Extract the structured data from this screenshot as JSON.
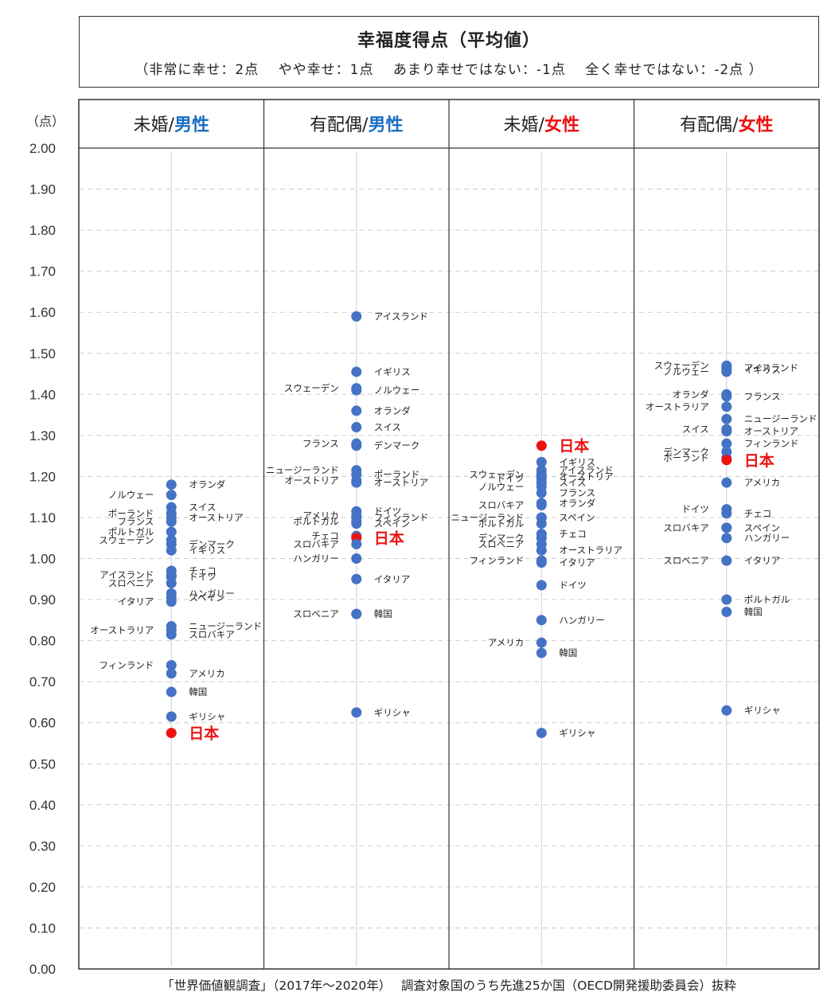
{
  "title": "幸福度得点（平均値）",
  "subtitle": "（非常に幸せ：2点　 やや幸せ：1点　 あまり幸せではない：-1点　 全く幸せではない：-2点 ）",
  "source": "「世界価値観調査」（2017年～2020年）　 調査対象国のうち先進25か国（OECD開発援助委員会）抜粋",
  "colors": {
    "point": "#4472c4",
    "japan": "#ee1111",
    "male": "#1a6fc2",
    "female": "#ee1111",
    "grid": "#cccccc"
  },
  "chart_data": {
    "type": "scatter",
    "ylabel": "（点）",
    "ylim": [
      0,
      2
    ],
    "yticks": [
      "0.00",
      "0.10",
      "0.20",
      "0.30",
      "0.40",
      "0.50",
      "0.60",
      "0.70",
      "0.80",
      "0.90",
      "1.00",
      "1.10",
      "1.20",
      "1.30",
      "1.40",
      "1.50",
      "1.60",
      "1.70",
      "1.80",
      "1.90",
      "2.00"
    ],
    "grid": true,
    "panels": [
      {
        "header_prefix": "未婚/",
        "header_gender": "男性",
        "gender": "male",
        "points": [
          {
            "label": "オランダ",
            "value": 1.18,
            "side": "right"
          },
          {
            "label": "ノルウェー",
            "value": 1.155,
            "side": "left"
          },
          {
            "label": "スイス",
            "value": 1.125,
            "side": "right"
          },
          {
            "label": "ポーランド",
            "value": 1.11,
            "side": "left"
          },
          {
            "label": "オーストリア",
            "value": 1.1,
            "side": "right"
          },
          {
            "label": "フランス",
            "value": 1.09,
            "side": "left"
          },
          {
            "label": "ポルトガル",
            "value": 1.065,
            "side": "left"
          },
          {
            "label": "スウェーデン",
            "value": 1.045,
            "side": "left"
          },
          {
            "label": "デンマーク",
            "value": 1.035,
            "side": "right"
          },
          {
            "label": "イギリス",
            "value": 1.02,
            "side": "right"
          },
          {
            "label": "チェコ",
            "value": 0.97,
            "side": "right"
          },
          {
            "label": "アイスランド",
            "value": 0.96,
            "side": "left"
          },
          {
            "label": "ドイツ",
            "value": 0.955,
            "side": "right"
          },
          {
            "label": "スロベニア",
            "value": 0.94,
            "side": "left"
          },
          {
            "label": "ハンガリー",
            "value": 0.915,
            "side": "right"
          },
          {
            "label": "スペイン",
            "value": 0.905,
            "side": "right"
          },
          {
            "label": "イタリア",
            "value": 0.895,
            "side": "left"
          },
          {
            "label": "ニュージーランド",
            "value": 0.835,
            "side": "right"
          },
          {
            "label": "オーストラリア",
            "value": 0.825,
            "side": "left"
          },
          {
            "label": "スロバキア",
            "value": 0.815,
            "side": "right"
          },
          {
            "label": "フィンランド",
            "value": 0.74,
            "side": "left"
          },
          {
            "label": "アメリカ",
            "value": 0.72,
            "side": "right"
          },
          {
            "label": "韓国",
            "value": 0.675,
            "side": "right"
          },
          {
            "label": "ギリシャ",
            "value": 0.615,
            "side": "right"
          },
          {
            "label": "日本",
            "value": 0.575,
            "side": "right",
            "highlight": true
          }
        ]
      },
      {
        "header_prefix": "有配偶/",
        "header_gender": "男性",
        "gender": "male",
        "points": [
          {
            "label": "アイスランド",
            "value": 1.59,
            "side": "right"
          },
          {
            "label": "イギリス",
            "value": 1.455,
            "side": "right"
          },
          {
            "label": "スウェーデン",
            "value": 1.415,
            "side": "left"
          },
          {
            "label": "ノルウェー",
            "value": 1.41,
            "side": "right"
          },
          {
            "label": "オランダ",
            "value": 1.36,
            "side": "right"
          },
          {
            "label": "スイス",
            "value": 1.32,
            "side": "right"
          },
          {
            "label": "フランス",
            "value": 1.28,
            "side": "left"
          },
          {
            "label": "デンマーク",
            "value": 1.275,
            "side": "right"
          },
          {
            "label": "ニュージーランド",
            "value": 1.215,
            "side": "left"
          },
          {
            "label": "ポーランド",
            "value": 1.205,
            "side": "right"
          },
          {
            "label": "オーストリア",
            "value": 1.19,
            "side": "left"
          },
          {
            "label": "オーストリア",
            "value": 1.185,
            "side": "right"
          },
          {
            "label": "ドイツ",
            "value": 1.115,
            "side": "right"
          },
          {
            "label": "アメリカ",
            "value": 1.105,
            "side": "left"
          },
          {
            "label": "フィンランド",
            "value": 1.1,
            "side": "right"
          },
          {
            "label": "ポルトガル",
            "value": 1.09,
            "side": "left"
          },
          {
            "label": "スペイン",
            "value": 1.085,
            "side": "right"
          },
          {
            "label": "チェコ",
            "value": 1.055,
            "side": "left"
          },
          {
            "label": "日本",
            "value": 1.05,
            "side": "right",
            "highlight": true
          },
          {
            "label": "スロバキア",
            "value": 1.035,
            "side": "left"
          },
          {
            "label": "ハンガリー",
            "value": 1.0,
            "side": "left"
          },
          {
            "label": "イタリア",
            "value": 0.95,
            "side": "right"
          },
          {
            "label": "スロベニア",
            "value": 0.865,
            "side": "left"
          },
          {
            "label": "韓国",
            "value": 0.865,
            "side": "right"
          },
          {
            "label": "ギリシャ",
            "value": 0.625,
            "side": "right"
          }
        ]
      },
      {
        "header_prefix": "未婚/",
        "header_gender": "女性",
        "gender": "female",
        "points": [
          {
            "label": "日本",
            "value": 1.275,
            "side": "right",
            "highlight": true
          },
          {
            "label": "イギリス",
            "value": 1.235,
            "side": "right"
          },
          {
            "label": "アイスランド",
            "value": 1.215,
            "side": "right"
          },
          {
            "label": "スウェーデン",
            "value": 1.205,
            "side": "left"
          },
          {
            "label": "オーストリア",
            "value": 1.2,
            "side": "right"
          },
          {
            "label": "ドイツ",
            "value": 1.195,
            "side": "left"
          },
          {
            "label": "スイス",
            "value": 1.185,
            "side": "right"
          },
          {
            "label": "ノルウェー",
            "value": 1.175,
            "side": "left"
          },
          {
            "label": "フランス",
            "value": 1.16,
            "side": "right"
          },
          {
            "label": "スロバキア",
            "value": 1.13,
            "side": "left"
          },
          {
            "label": "オランダ",
            "value": 1.135,
            "side": "right"
          },
          {
            "label": "ニュージーランド",
            "value": 1.1,
            "side": "left"
          },
          {
            "label": "スペイン",
            "value": 1.1,
            "side": "right"
          },
          {
            "label": "ポルトガル",
            "value": 1.085,
            "side": "left"
          },
          {
            "label": "チェコ",
            "value": 1.06,
            "side": "right"
          },
          {
            "label": "デンマーク",
            "value": 1.05,
            "side": "left"
          },
          {
            "label": "スロベニア",
            "value": 1.035,
            "side": "left"
          },
          {
            "label": "オーストラリア",
            "value": 1.02,
            "side": "right"
          },
          {
            "label": "フィンランド",
            "value": 0.995,
            "side": "left"
          },
          {
            "label": "イタリア",
            "value": 0.99,
            "side": "right"
          },
          {
            "label": "ドイツ",
            "value": 0.935,
            "side": "right"
          },
          {
            "label": "ハンガリー",
            "value": 0.85,
            "side": "right"
          },
          {
            "label": "アメリカ",
            "value": 0.795,
            "side": "left"
          },
          {
            "label": "韓国",
            "value": 0.77,
            "side": "right"
          },
          {
            "label": "ギリシャ",
            "value": 0.575,
            "side": "right"
          }
        ]
      },
      {
        "header_prefix": "有配偶/",
        "header_gender": "女性",
        "gender": "female",
        "points": [
          {
            "label": "スウェーデン",
            "value": 1.47,
            "side": "left"
          },
          {
            "label": "アイスランド",
            "value": 1.465,
            "side": "right"
          },
          {
            "label": "ノルウェー",
            "value": 1.455,
            "side": "left"
          },
          {
            "label": "イギリス",
            "value": 1.46,
            "side": "right"
          },
          {
            "label": "オランダ",
            "value": 1.4,
            "side": "left"
          },
          {
            "label": "フランス",
            "value": 1.395,
            "side": "right"
          },
          {
            "label": "オーストラリア",
            "value": 1.37,
            "side": "left"
          },
          {
            "label": "ニュージーランド",
            "value": 1.34,
            "side": "right"
          },
          {
            "label": "スイス",
            "value": 1.315,
            "side": "left"
          },
          {
            "label": "オーストリア",
            "value": 1.31,
            "side": "right"
          },
          {
            "label": "フィンランド",
            "value": 1.28,
            "side": "right"
          },
          {
            "label": "デンマーク",
            "value": 1.26,
            "side": "left"
          },
          {
            "label": "ポーランド",
            "value": 1.245,
            "side": "left"
          },
          {
            "label": "日本",
            "value": 1.24,
            "side": "right",
            "highlight": true
          },
          {
            "label": "アメリカ",
            "value": 1.185,
            "side": "right"
          },
          {
            "label": "ドイツ",
            "value": 1.12,
            "side": "left"
          },
          {
            "label": "チェコ",
            "value": 1.11,
            "side": "right"
          },
          {
            "label": "スロバキア",
            "value": 1.075,
            "side": "left"
          },
          {
            "label": "スペイン",
            "value": 1.075,
            "side": "right"
          },
          {
            "label": "ハンガリー",
            "value": 1.05,
            "side": "right"
          },
          {
            "label": "スロベニア",
            "value": 0.995,
            "side": "left"
          },
          {
            "label": "イタリア",
            "value": 0.995,
            "side": "right"
          },
          {
            "label": "ポルトガル",
            "value": 0.9,
            "side": "right"
          },
          {
            "label": "韓国",
            "value": 0.87,
            "side": "right"
          },
          {
            "label": "ギリシャ",
            "value": 0.63,
            "side": "right"
          }
        ]
      }
    ]
  }
}
